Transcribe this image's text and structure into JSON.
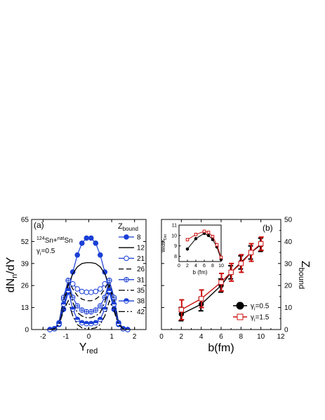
{
  "chart_data": [
    {
      "panel_label": "(a)",
      "type": "line",
      "xlabel": "Y",
      "xlabel_sub": "red",
      "ylabel": "dN",
      "ylabel_sub": "n",
      "ylabel_tail": "/dY",
      "xlim": [
        -2.5,
        2.5
      ],
      "ylim": [
        0,
        65
      ],
      "xticks": [
        "-2",
        "-1",
        "0",
        "1",
        "2"
      ],
      "yticks": [
        "0",
        "13",
        "26",
        "39",
        "52",
        "65"
      ],
      "annotation_reaction": {
        "m1": "124",
        "e1": "Sn+",
        "m2": "nat",
        "e2": "Sn"
      },
      "annotation_gamma": {
        "sym": "γ",
        "sub": "i",
        "val": "=0.5"
      },
      "legend_title": {
        "main": "Z",
        "sub": "bound"
      },
      "series": [
        {
          "name": "8",
          "color": "#1a3fd6",
          "dash": "",
          "marker": "filled-circle",
          "x": [
            -1.7,
            -1.5,
            -1.3,
            -1.1,
            -0.9,
            -0.7,
            -0.5,
            -0.3,
            -0.1,
            0.1,
            0.3,
            0.5,
            0.7,
            0.9,
            1.1,
            1.3,
            1.5,
            1.7
          ],
          "y": [
            0,
            0.5,
            3,
            12,
            22,
            34,
            44,
            51,
            54,
            54,
            51,
            44,
            34,
            22,
            12,
            3,
            0.5,
            0
          ]
        },
        {
          "name": "12",
          "color": "#000000",
          "dash": "",
          "marker": "none",
          "x": [
            -1.7,
            -1.5,
            -1.3,
            -1.1,
            -0.9,
            -0.7,
            -0.5,
            -0.3,
            -0.1,
            0.1,
            0.3,
            0.5,
            0.7,
            0.9,
            1.1,
            1.3,
            1.5,
            1.7
          ],
          "y": [
            0,
            0.5,
            3,
            14,
            26,
            33,
            37,
            39,
            39.5,
            39.5,
            39,
            37,
            33,
            26,
            14,
            3,
            0.5,
            0
          ]
        },
        {
          "name": "21",
          "color": "#1a3fd6",
          "dash": "",
          "marker": "open-circle",
          "x": [
            -1.7,
            -1.5,
            -1.3,
            -1.1,
            -0.9,
            -0.7,
            -0.5,
            -0.3,
            -0.1,
            0.1,
            0.3,
            0.5,
            0.7,
            0.9,
            1.1,
            1.3,
            1.5,
            1.7
          ],
          "y": [
            0,
            0.5,
            4,
            18,
            29,
            27,
            24,
            22.5,
            22,
            22,
            22.5,
            24,
            27,
            29,
            18,
            4,
            0.5,
            0
          ]
        },
        {
          "name": "26",
          "color": "#000000",
          "dash": "7,4",
          "marker": "none",
          "x": [
            -1.7,
            -1.5,
            -1.3,
            -1.1,
            -0.9,
            -0.7,
            -0.5,
            -0.3,
            -0.1,
            0.1,
            0.3,
            0.5,
            0.7,
            0.9,
            1.1,
            1.3,
            1.5,
            1.7
          ],
          "y": [
            0,
            0.5,
            4,
            19,
            29,
            24,
            20,
            18,
            17,
            17,
            18,
            20,
            24,
            29,
            19,
            4,
            0.5,
            0
          ]
        },
        {
          "name": "31",
          "color": "#1a3fd6",
          "dash": "",
          "marker": "crossed-circle",
          "x": [
            -1.7,
            -1.5,
            -1.3,
            -1.1,
            -0.9,
            -0.7,
            -0.5,
            -0.3,
            -0.1,
            0.1,
            0.3,
            0.5,
            0.7,
            0.9,
            1.1,
            1.3,
            1.5,
            1.7
          ],
          "y": [
            0,
            0.5,
            4,
            19,
            29,
            19,
            14,
            11.5,
            10.5,
            10.5,
            11.5,
            14,
            19,
            29,
            19,
            4,
            0.5,
            0
          ]
        },
        {
          "name": "35",
          "color": "#000000",
          "dash": "9,3,2,3",
          "marker": "none",
          "x": [
            -1.7,
            -1.5,
            -1.3,
            -1.1,
            -0.9,
            -0.7,
            -0.5,
            -0.3,
            -0.1,
            0.1,
            0.3,
            0.5,
            0.7,
            0.9,
            1.1,
            1.3,
            1.5,
            1.7
          ],
          "y": [
            0,
            0.5,
            4,
            17,
            27,
            16,
            10,
            8,
            7,
            7,
            8,
            10,
            16,
            27,
            17,
            4,
            0.5,
            0
          ]
        },
        {
          "name": "38",
          "color": "#1a3fd6",
          "dash": "",
          "marker": "half-circle",
          "x": [
            -1.7,
            -1.5,
            -1.3,
            -1.1,
            -0.9,
            -0.7,
            -0.5,
            -0.3,
            -0.1,
            0.1,
            0.3,
            0.5,
            0.7,
            0.9,
            1.1,
            1.3,
            1.5,
            1.7
          ],
          "y": [
            0,
            0.5,
            3.5,
            15,
            23,
            12,
            6,
            4,
            3.5,
            3.5,
            4,
            6,
            12,
            23,
            15,
            3.5,
            0.5,
            0
          ]
        },
        {
          "name": "42",
          "color": "#000000",
          "dash": "9,3,2,3,2,3",
          "marker": "none",
          "x": [
            -1.7,
            -1.5,
            -1.3,
            -1.1,
            -0.9,
            -0.7,
            -0.5,
            -0.3,
            -0.1,
            0.1,
            0.3,
            0.5,
            0.7,
            0.9,
            1.1,
            1.3,
            1.5,
            1.7
          ],
          "y": [
            0,
            0.5,
            3,
            11,
            17,
            8,
            3,
            1,
            0.5,
            0.5,
            1,
            3,
            8,
            17,
            11,
            3,
            0.5,
            0
          ]
        }
      ]
    },
    {
      "panel_label": "(b)",
      "type": "line",
      "xlabel": "b(fm)",
      "ylabel": "Z",
      "ylabel_sub": "bound",
      "xlim": [
        0,
        12
      ],
      "ylim": [
        0,
        50
      ],
      "xticks": [
        "0",
        "2",
        "4",
        "6",
        "8",
        "10",
        "12"
      ],
      "yticks": [
        "0",
        "10",
        "20",
        "30",
        "40",
        "50"
      ],
      "legend_position": "bottom-right",
      "series": [
        {
          "name": "γ_i=0.5",
          "sym": "γ",
          "sub": "i",
          "val": "=0.5",
          "color": "#000000",
          "marker": "filled-circle",
          "x": [
            2,
            4,
            6,
            7,
            8,
            9,
            10
          ],
          "y": [
            7,
            11.5,
            20,
            26,
            30.5,
            35,
            38.5
          ],
          "err": [
            3,
            3,
            3,
            3,
            3,
            3,
            3
          ]
        },
        {
          "name": "γ_i=1.5",
          "sym": "γ",
          "sub": "i",
          "val": "=1.5",
          "color": "#cc1111",
          "marker": "open-square",
          "x": [
            2,
            4,
            6,
            7,
            8,
            9,
            10
          ],
          "y": [
            9,
            14,
            21.5,
            26,
            30,
            35,
            39
          ],
          "err": [
            4.5,
            4,
            4,
            4,
            4,
            4,
            3
          ]
        }
      ],
      "inset": {
        "type": "line",
        "xlabel": "b (fm)",
        "ylabel": "Width",
        "ylabel_sub": "Det",
        "xlim": [
          0,
          10
        ],
        "ylim": [
          7.5,
          11
        ],
        "xticks": [
          "0",
          "2",
          "4",
          "6",
          "8",
          "10"
        ],
        "yticks": [
          "8",
          "9",
          "10",
          "11"
        ],
        "series": [
          {
            "name": "γ_i=0.5",
            "color": "#000000",
            "marker": "filled-circle",
            "x": [
              2,
              4,
              6,
              7,
              8,
              9,
              10
            ],
            "y": [
              8.7,
              9.7,
              10.2,
              10.0,
              9.6,
              8.9,
              7.7
            ]
          },
          {
            "name": "γ_i=1.5",
            "color": "#cc1111",
            "marker": "open-square",
            "x": [
              2,
              4,
              6,
              7,
              8,
              9,
              10
            ],
            "y": [
              9.6,
              10.1,
              10.4,
              10.3,
              9.9,
              9.1,
              7.9
            ]
          }
        ]
      }
    }
  ]
}
